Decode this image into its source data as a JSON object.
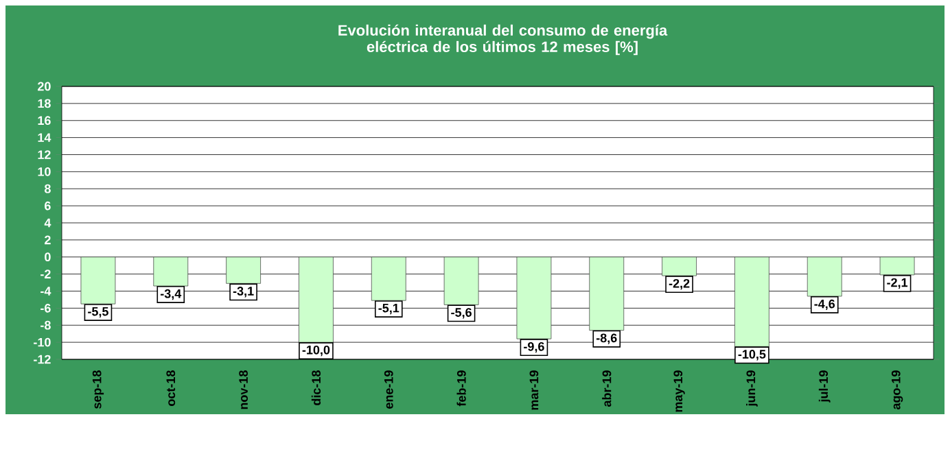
{
  "chart_data": {
    "type": "bar",
    "title": "Evolución interanual del consumo de energía eléctrica de los últimos 12 meses [%]",
    "categories": [
      "sep-18",
      "oct-18",
      "nov-18",
      "dic-18",
      "ene-19",
      "feb-19",
      "mar-19",
      "abr-19",
      "may-19",
      "jun-19",
      "jul-19",
      "ago-19"
    ],
    "values": [
      -5.5,
      -3.4,
      -3.1,
      -10.0,
      -5.1,
      -5.6,
      -9.6,
      -8.6,
      -2.2,
      -10.5,
      -4.6,
      -2.1
    ],
    "value_labels": [
      "-5,5",
      "-3,4",
      "-3,1",
      "-10,0",
      "-5,1",
      "-5,6",
      "-9,6",
      "-8,6",
      "-2,2",
      "-10,5",
      "-4,6",
      "-2,1"
    ],
    "color": "#ccffcc",
    "ylim": [
      -12,
      20
    ],
    "yticks": [
      -12,
      -10,
      -8,
      -6,
      -4,
      -2,
      0,
      2,
      4,
      6,
      8,
      10,
      12,
      14,
      16,
      18,
      20
    ],
    "grid": "y"
  }
}
